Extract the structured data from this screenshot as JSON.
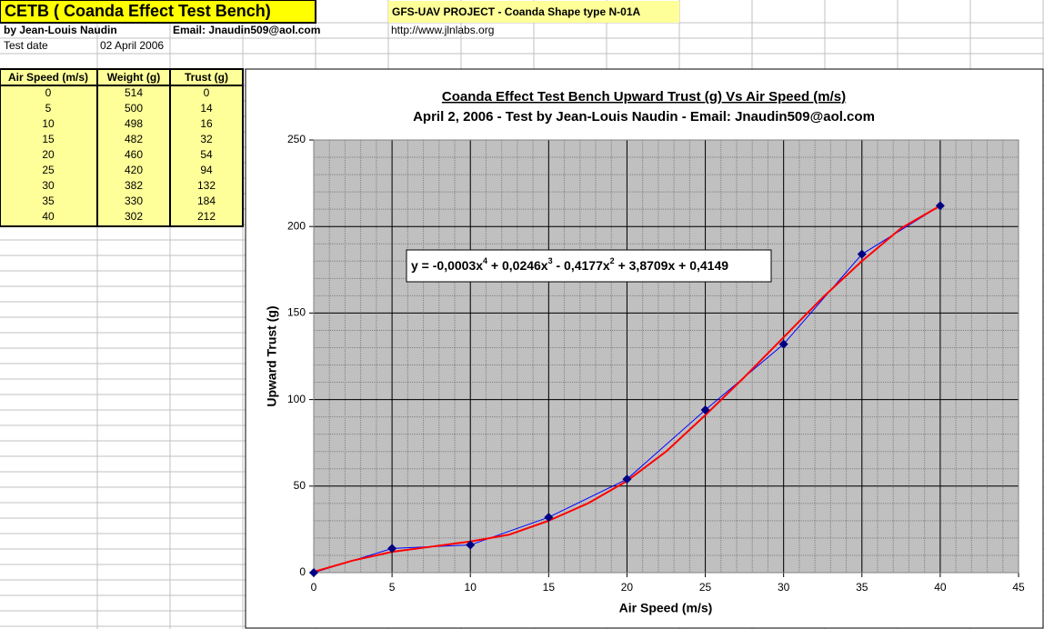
{
  "sheet": {
    "title": "CETB ( Coanda Effect Test Bench)",
    "project": "GFS-UAV PROJECT - Coanda Shape type N-01A",
    "author": "by Jean-Louis Naudin",
    "email": "Email: Jnaudin509@aol.com",
    "url": "http://www.jlnlabs.org",
    "date_label": "Test date",
    "date": "02 April 2006",
    "table": {
      "header": [
        "Air Speed (m/s)",
        "Weight (g)",
        "Trust (g)"
      ],
      "rows": [
        [
          "0",
          "514",
          "0"
        ],
        [
          "5",
          "500",
          "14"
        ],
        [
          "10",
          "498",
          "16"
        ],
        [
          "15",
          "482",
          "32"
        ],
        [
          "20",
          "460",
          "54"
        ],
        [
          "25",
          "420",
          "94"
        ],
        [
          "30",
          "382",
          "132"
        ],
        [
          "35",
          "330",
          "184"
        ],
        [
          "40",
          "302",
          "212"
        ]
      ]
    }
  },
  "chart_data": {
    "type": "line",
    "title": "Coanda Effect Test Bench Upward Trust (g) Vs Air Speed (m/s)",
    "subtitle": "April 2, 2006 - Test by Jean-Louis Naudin - Email: Jnaudin509@aol.com",
    "x_label": "Air Speed (m/s)",
    "y_label": "Upward Trust (g)",
    "x": [
      0,
      5,
      10,
      15,
      20,
      25,
      30,
      35,
      40
    ],
    "series": [
      {
        "color": "#000080",
        "marker": "diamond",
        "values": [
          0,
          14,
          16,
          32,
          54,
          94,
          132,
          184,
          212
        ]
      }
    ],
    "trendline": {
      "color": "#ff0000",
      "x": [
        0,
        2.5,
        5,
        7.5,
        10,
        12.5,
        15,
        17.5,
        20,
        22.5,
        25,
        27.5,
        30,
        32.5,
        35,
        37.5,
        40
      ],
      "values": [
        0.5,
        7,
        12,
        15,
        18,
        22,
        30,
        40,
        53,
        70,
        91,
        113,
        136,
        159,
        180,
        199,
        212
      ],
      "label": [
        "y = -0,0003x",
        "4",
        " + 0,0246x",
        "3",
        " - 0,4177x",
        "2",
        " + 3,8709x + 0,4149"
      ]
    },
    "xlim": [
      0,
      45
    ],
    "xticks": [
      0,
      5,
      10,
      15,
      20,
      25,
      30,
      35,
      40,
      45
    ],
    "ylim": [
      0,
      250
    ],
    "yticks": [
      0,
      50,
      100,
      150,
      200,
      250
    ],
    "grid": true,
    "minor_grid": {
      "x": 1,
      "y": 10
    },
    "background": "#c0c0c0"
  }
}
